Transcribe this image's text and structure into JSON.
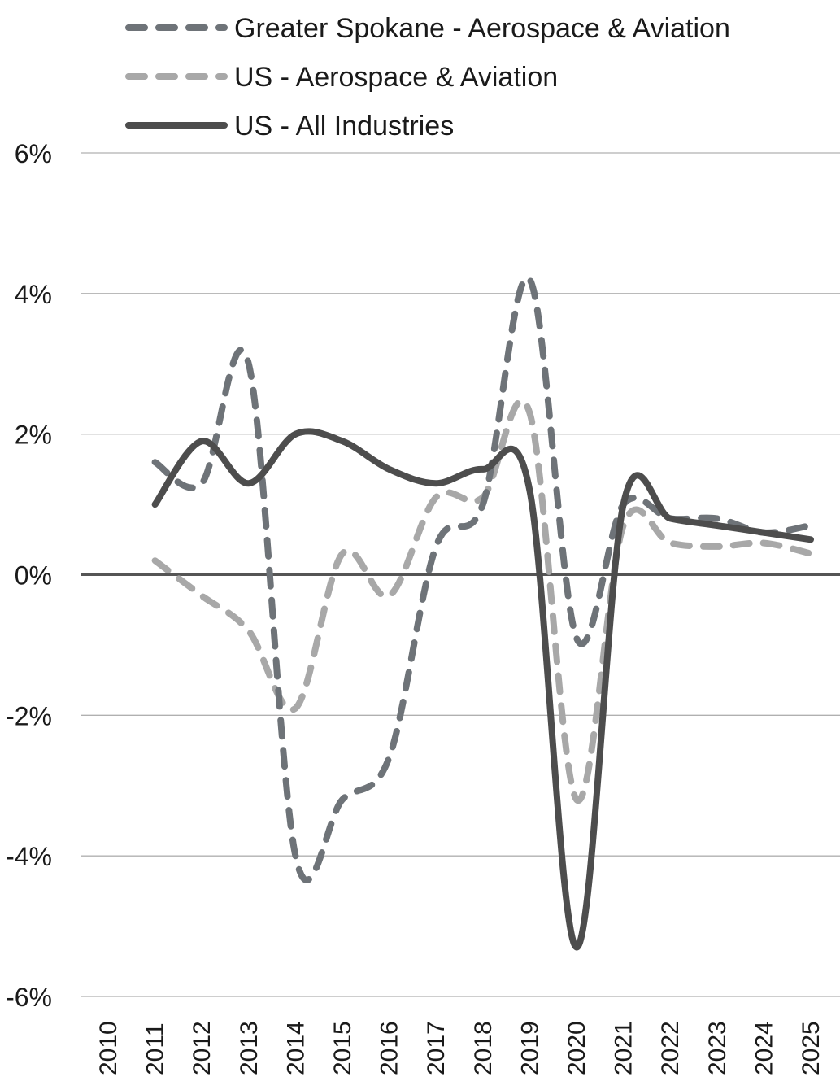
{
  "chart_data": {
    "type": "line",
    "title": "",
    "xlabel": "",
    "ylabel": "",
    "x": [
      "2010",
      "2011",
      "2012",
      "2013",
      "2014",
      "2015",
      "2016",
      "2017",
      "2018",
      "2019",
      "2020",
      "2021",
      "2022",
      "2023",
      "2024",
      "2025"
    ],
    "ylim": [
      -6,
      6
    ],
    "y_ticks": [
      "6%",
      "4%",
      "2%",
      "0%",
      "-2%",
      "-4%",
      "-6%"
    ],
    "y_tick_values": [
      6,
      4,
      2,
      0,
      -2,
      -4,
      -6
    ],
    "grid": "horizontal",
    "legend_position": "top-left",
    "series": [
      {
        "name": "Greater Spokane - Aerospace & Aviation",
        "style": "dashed",
        "color": "#6e7378",
        "values": [
          null,
          1.6,
          1.3,
          3.0,
          -4.0,
          -3.2,
          -2.6,
          0.4,
          1.0,
          4.2,
          -0.9,
          1.0,
          0.8,
          0.8,
          0.6,
          0.7
        ]
      },
      {
        "name": "US - Aerospace & Aviation",
        "style": "dashed",
        "color": "#a8a8a8",
        "values": [
          null,
          0.2,
          -0.3,
          -0.8,
          -1.9,
          0.3,
          -0.3,
          1.1,
          1.1,
          2.3,
          -3.2,
          0.7,
          0.45,
          0.4,
          0.45,
          0.3
        ]
      },
      {
        "name": "US - All Industries",
        "style": "solid",
        "color": "#4d4d4d",
        "values": [
          null,
          1.0,
          1.9,
          1.3,
          2.0,
          1.9,
          1.5,
          1.3,
          1.5,
          1.2,
          -5.3,
          1.0,
          0.8,
          0.7,
          0.6,
          0.5
        ]
      }
    ]
  }
}
